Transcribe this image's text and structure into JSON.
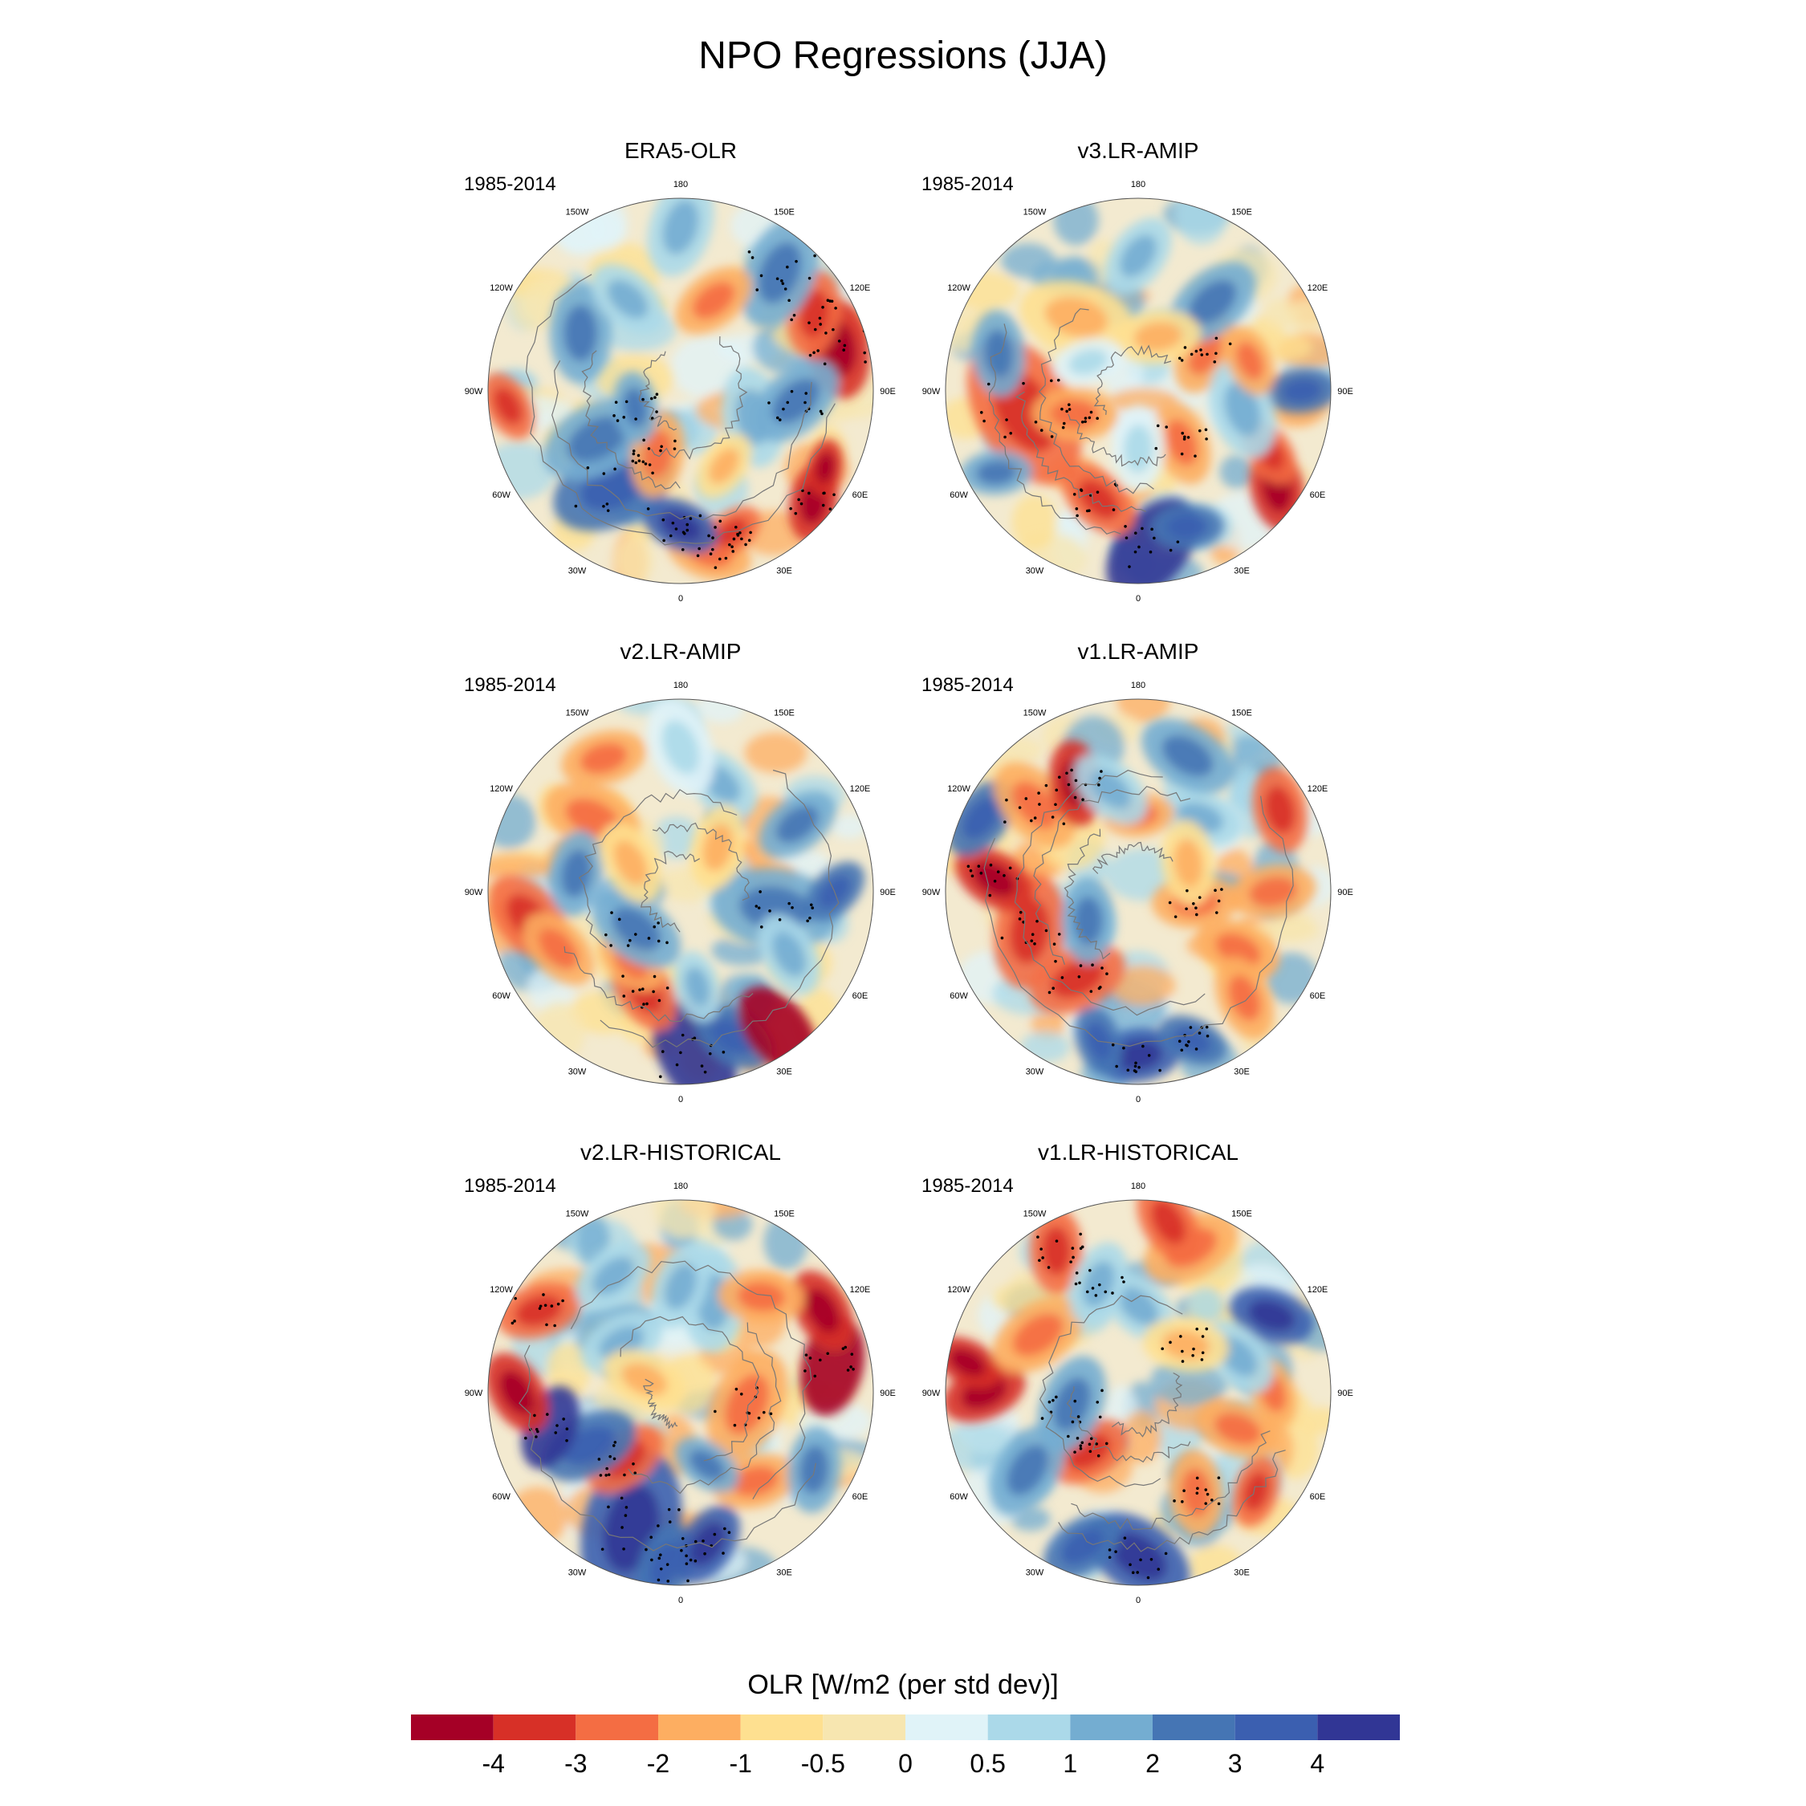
{
  "figure": {
    "title": "NPO Regressions (JJA)"
  },
  "panels": [
    {
      "title": "ERA5-OLR",
      "period": "1985-2014",
      "theme": "era5"
    },
    {
      "title": "v3.LR-AMIP",
      "period": "1985-2014",
      "theme": "v3amip"
    },
    {
      "title": "v2.LR-AMIP",
      "period": "1985-2014",
      "theme": "v2amip"
    },
    {
      "title": "v1.LR-AMIP",
      "period": "1985-2014",
      "theme": "v1amip"
    },
    {
      "title": "v2.LR-HISTORICAL",
      "period": "1985-2014",
      "theme": "v2hist"
    },
    {
      "title": "v1.LR-HISTORICAL",
      "period": "1985-2014",
      "theme": "v1hist"
    }
  ],
  "lon_labels": [
    "180",
    "150E",
    "120E",
    "90E",
    "60E",
    "30E",
    "0",
    "30W",
    "60W",
    "90W",
    "120W",
    "150W"
  ],
  "colorbar": {
    "title": "OLR [W/m2 (per std dev)]",
    "tick_labels": [
      "-4",
      "-3",
      "-2",
      "-1",
      "-0.5",
      "0",
      "0.5",
      "1",
      "2",
      "3",
      "4"
    ],
    "colors": [
      "#a50026",
      "#d73027",
      "#f46d43",
      "#fdae61",
      "#fee090",
      "#f7e6b0",
      "#e0f3f8",
      "#abd9e9",
      "#74add1",
      "#4575b4",
      "#3b5fb0",
      "#313695"
    ]
  }
}
